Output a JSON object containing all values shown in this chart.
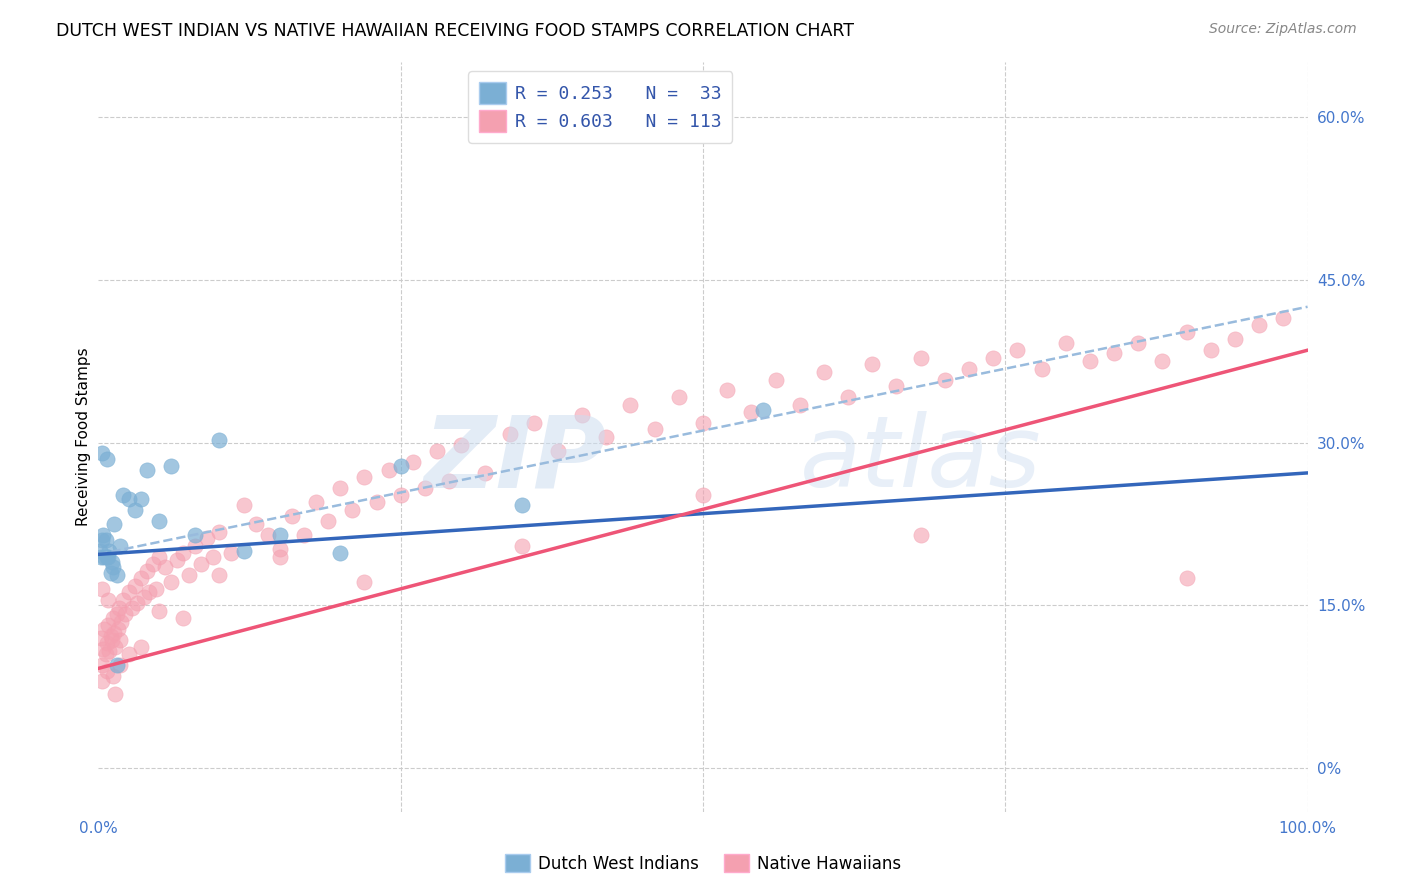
{
  "title": "DUTCH WEST INDIAN VS NATIVE HAWAIIAN RECEIVING FOOD STAMPS CORRELATION CHART",
  "source": "Source: ZipAtlas.com",
  "ylabel": "Receiving Food Stamps",
  "blue_color": "#7BAFD4",
  "pink_color": "#F4A0B0",
  "blue_line_color": "#3366BB",
  "pink_line_color": "#EE5577",
  "dashed_line_color": "#99BBDD",
  "blue_scatter_x": [
    0.001,
    0.002,
    0.003,
    0.004,
    0.005,
    0.006,
    0.007,
    0.008,
    0.009,
    0.01,
    0.011,
    0.012,
    0.013,
    0.015,
    0.018,
    0.02,
    0.025,
    0.03,
    0.035,
    0.04,
    0.05,
    0.06,
    0.08,
    0.1,
    0.12,
    0.15,
    0.2,
    0.25,
    0.35,
    0.55,
    0.003,
    0.007,
    0.015
  ],
  "blue_scatter_y": [
    0.2,
    0.195,
    0.21,
    0.215,
    0.195,
    0.21,
    0.195,
    0.195,
    0.2,
    0.18,
    0.19,
    0.185,
    0.225,
    0.178,
    0.205,
    0.252,
    0.248,
    0.238,
    0.248,
    0.275,
    0.228,
    0.278,
    0.215,
    0.302,
    0.2,
    0.215,
    0.198,
    0.278,
    0.242,
    0.33,
    0.29,
    0.285,
    0.095
  ],
  "pink_scatter_x": [
    0.002,
    0.003,
    0.004,
    0.005,
    0.006,
    0.007,
    0.008,
    0.009,
    0.01,
    0.011,
    0.012,
    0.013,
    0.014,
    0.015,
    0.016,
    0.017,
    0.018,
    0.019,
    0.02,
    0.022,
    0.025,
    0.028,
    0.03,
    0.032,
    0.035,
    0.038,
    0.04,
    0.042,
    0.045,
    0.048,
    0.05,
    0.055,
    0.06,
    0.065,
    0.07,
    0.075,
    0.08,
    0.085,
    0.09,
    0.095,
    0.1,
    0.11,
    0.12,
    0.13,
    0.14,
    0.15,
    0.16,
    0.17,
    0.18,
    0.19,
    0.2,
    0.21,
    0.22,
    0.23,
    0.24,
    0.25,
    0.26,
    0.27,
    0.28,
    0.29,
    0.3,
    0.32,
    0.34,
    0.36,
    0.38,
    0.4,
    0.42,
    0.44,
    0.46,
    0.48,
    0.5,
    0.52,
    0.54,
    0.56,
    0.58,
    0.6,
    0.62,
    0.64,
    0.66,
    0.68,
    0.7,
    0.72,
    0.74,
    0.76,
    0.78,
    0.8,
    0.82,
    0.84,
    0.86,
    0.88,
    0.9,
    0.92,
    0.94,
    0.96,
    0.98,
    0.003,
    0.007,
    0.012,
    0.018,
    0.025,
    0.035,
    0.05,
    0.07,
    0.1,
    0.15,
    0.22,
    0.35,
    0.5,
    0.68,
    0.9,
    0.003,
    0.008,
    0.014
  ],
  "pink_scatter_y": [
    0.12,
    0.095,
    0.11,
    0.128,
    0.105,
    0.115,
    0.132,
    0.108,
    0.122,
    0.118,
    0.138,
    0.125,
    0.112,
    0.142,
    0.128,
    0.148,
    0.118,
    0.135,
    0.155,
    0.142,
    0.162,
    0.148,
    0.168,
    0.152,
    0.175,
    0.158,
    0.182,
    0.162,
    0.188,
    0.165,
    0.195,
    0.185,
    0.172,
    0.192,
    0.198,
    0.178,
    0.205,
    0.188,
    0.212,
    0.195,
    0.218,
    0.198,
    0.242,
    0.225,
    0.215,
    0.202,
    0.232,
    0.215,
    0.245,
    0.228,
    0.258,
    0.238,
    0.268,
    0.245,
    0.275,
    0.252,
    0.282,
    0.258,
    0.292,
    0.265,
    0.298,
    0.272,
    0.308,
    0.318,
    0.292,
    0.325,
    0.305,
    0.335,
    0.312,
    0.342,
    0.318,
    0.348,
    0.328,
    0.358,
    0.335,
    0.365,
    0.342,
    0.372,
    0.352,
    0.378,
    0.358,
    0.368,
    0.378,
    0.385,
    0.368,
    0.392,
    0.375,
    0.382,
    0.392,
    0.375,
    0.402,
    0.385,
    0.395,
    0.408,
    0.415,
    0.08,
    0.09,
    0.085,
    0.095,
    0.105,
    0.112,
    0.145,
    0.138,
    0.178,
    0.195,
    0.172,
    0.205,
    0.252,
    0.215,
    0.175,
    0.165,
    0.155,
    0.068
  ],
  "blue_line_start_x": 0.0,
  "blue_line_start_y": 0.197,
  "blue_line_end_x": 1.0,
  "blue_line_end_y": 0.272,
  "pink_line_start_x": 0.0,
  "pink_line_start_y": 0.092,
  "pink_line_end_x": 1.0,
  "pink_line_end_y": 0.385,
  "dashed_line_start_x": 0.0,
  "dashed_line_start_y": 0.197,
  "dashed_line_end_x": 1.0,
  "dashed_line_end_y": 0.425,
  "xmin": 0.0,
  "xmax": 1.0,
  "ymin": -0.04,
  "ymax": 0.65,
  "ytick_vals": [
    0.0,
    0.15,
    0.3,
    0.45,
    0.6
  ],
  "ytick_labels": [
    "0%",
    "15.0%",
    "30.0%",
    "45.0%",
    "60.0%"
  ],
  "xtick_vals": [
    0.0,
    0.25,
    0.5,
    0.75,
    1.0
  ],
  "xtick_labels": [
    "0.0%",
    "",
    "",
    "",
    "100.0%"
  ],
  "legend1_text": "R = 0.253   N =  33",
  "legend2_text": "R = 0.603   N = 113",
  "bottom_legend1": "Dutch West Indians",
  "bottom_legend2": "Native Hawaiians"
}
